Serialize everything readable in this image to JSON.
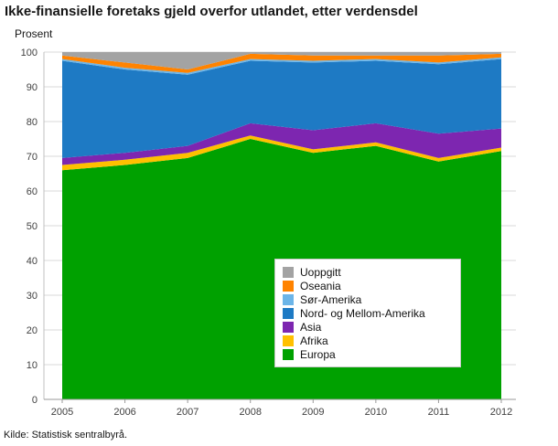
{
  "header": {
    "title": "Ikke-finansielle foretaks gjeld overfor utlandet, etter verdensdel"
  },
  "axis": {
    "y_unit_label": "Prosent"
  },
  "footer": {
    "source": "Kilde: Statistisk sentralbyrå."
  },
  "chart_data": {
    "type": "area",
    "stacked": true,
    "title": "Ikke-finansielle foretaks gjeld overfor utlandet, etter verdensdel",
    "ylabel": "Prosent",
    "ylim": [
      0,
      100
    ],
    "ytick_step": 10,
    "grid": "horizontal",
    "legend_position": "inner-bottom-right",
    "legend_order_note": "legend lists series top-of-stack first",
    "categories": [
      "2005",
      "2006",
      "2007",
      "2008",
      "2009",
      "2010",
      "2011",
      "2012"
    ],
    "series": [
      {
        "name": "Europa",
        "color": "#00a100",
        "values": [
          66,
          67.5,
          69.5,
          75,
          71,
          73,
          68.5,
          71.5
        ]
      },
      {
        "name": "Afrika",
        "color": "#ffc000",
        "values": [
          1.5,
          1.5,
          1.5,
          1,
          1,
          1,
          1,
          1
        ]
      },
      {
        "name": "Asia",
        "color": "#7d26b0",
        "values": [
          2,
          2,
          2,
          3.5,
          5.5,
          5.5,
          7,
          5.5
        ]
      },
      {
        "name": "Nord- og Mellom-Amerika",
        "color": "#1e7ac4",
        "values": [
          28,
          24,
          20.5,
          18,
          19.5,
          18,
          20,
          20
        ]
      },
      {
        "name": "Sør-Amerika",
        "color": "#6cb5e8",
        "values": [
          0.5,
          0.5,
          0.5,
          0.5,
          0.5,
          0.5,
          0.5,
          0.5
        ]
      },
      {
        "name": "Oseania",
        "color": "#ff8300",
        "values": [
          1,
          1.5,
          1,
          1.5,
          1.5,
          1,
          2,
          1
        ]
      },
      {
        "name": "Uoppgitt",
        "color": "#a3a3a3",
        "values": [
          1,
          3,
          5,
          0.5,
          1,
          1,
          1,
          0.5
        ]
      }
    ]
  }
}
